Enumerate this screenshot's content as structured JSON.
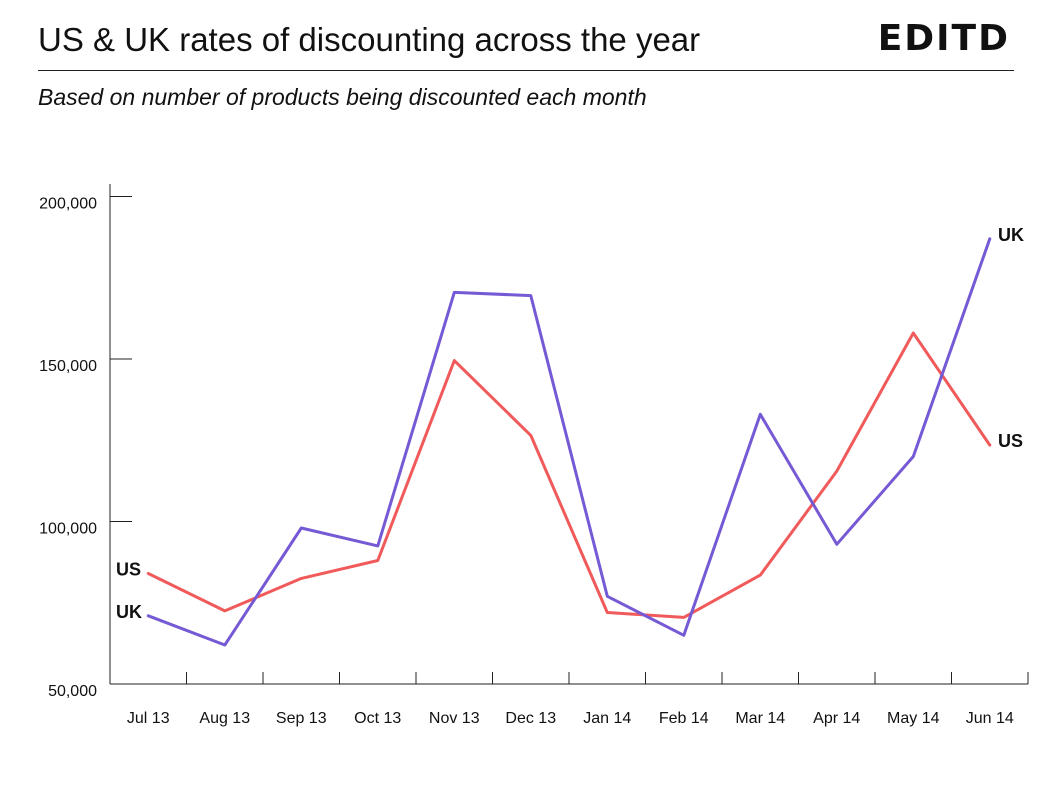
{
  "header": {
    "title": "US & UK rates of discounting across the year",
    "subtitle": "Based on number of products being discounted each month",
    "logo": "EDITD"
  },
  "chart_data": {
    "type": "line",
    "categories": [
      "Jul 13",
      "Aug 13",
      "Sep 13",
      "Oct 13",
      "Nov 13",
      "Dec 13",
      "Jan 14",
      "Feb 14",
      "Mar 14",
      "Apr 14",
      "May 14",
      "Jun 14"
    ],
    "series": [
      {
        "name": "US",
        "color": "#f15a5a",
        "values": [
          84000,
          72500,
          82500,
          88000,
          149500,
          126500,
          72000,
          70500,
          83500,
          115500,
          158000,
          123500
        ]
      },
      {
        "name": "UK",
        "color": "#7659d4",
        "values": [
          71000,
          62000,
          98000,
          92500,
          170500,
          169500,
          77000,
          65000,
          133000,
          93000,
          120000,
          187000
        ]
      }
    ],
    "y_ticks": [
      "200,000",
      "150,000",
      "100,000",
      "50,000"
    ],
    "y_tick_values": [
      200000,
      150000,
      100000,
      50000
    ],
    "ylim": [
      50000,
      202000
    ],
    "grid": false,
    "legend": "inline labels at line ends"
  }
}
